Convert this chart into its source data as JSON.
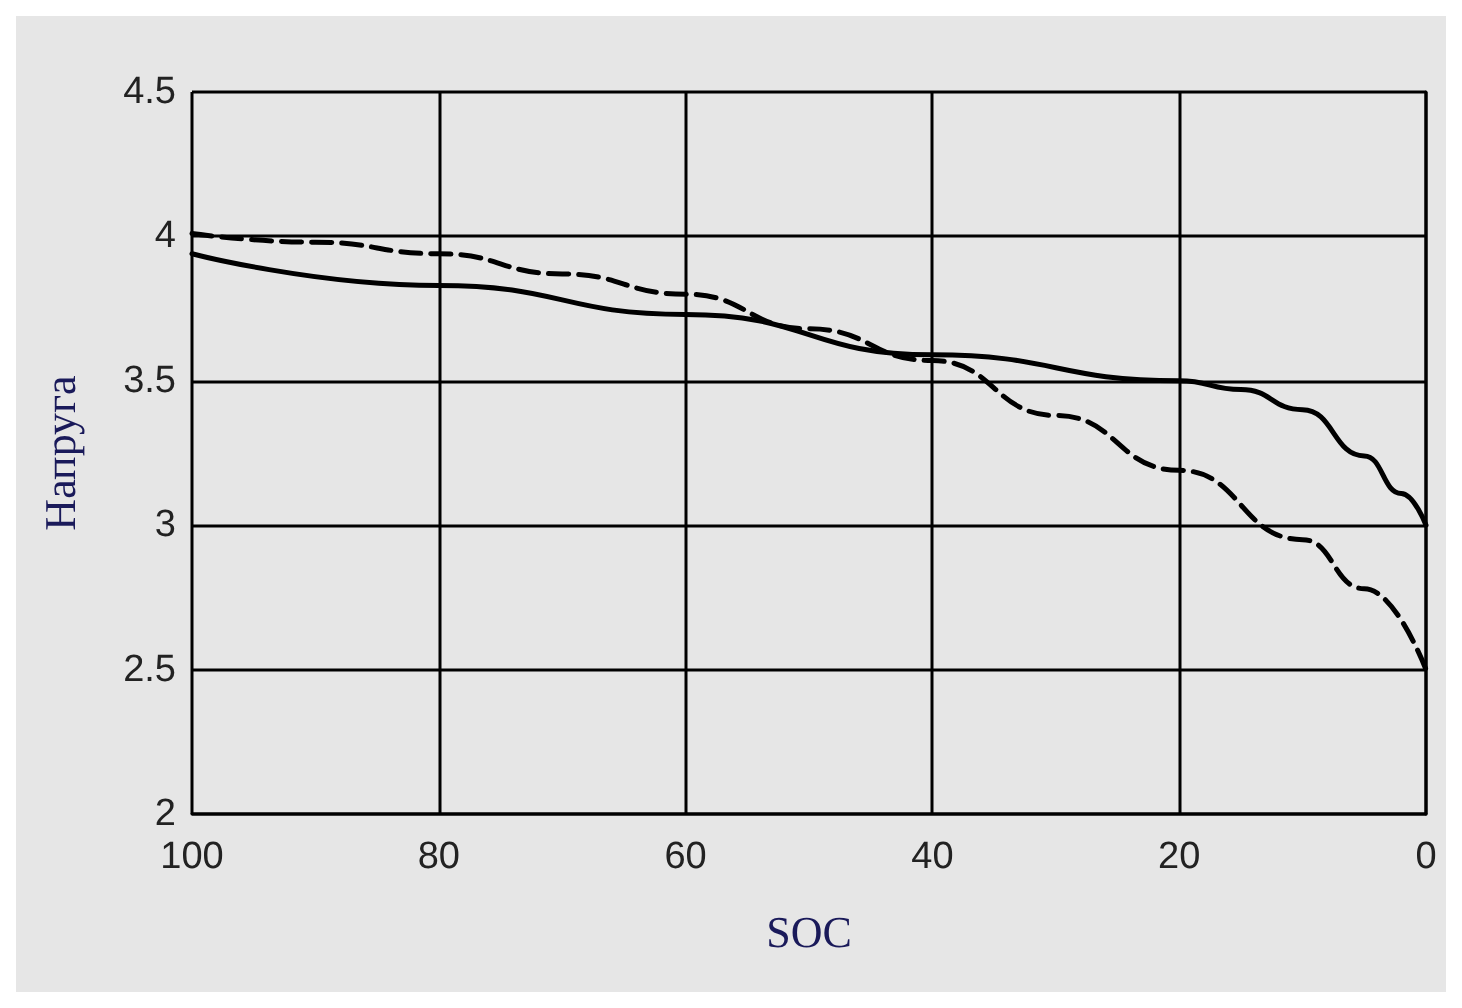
{
  "chart_data": {
    "type": "line",
    "xlabel": "SOC",
    "ylabel": "Напруга",
    "xlim": [
      100,
      0
    ],
    "xticks": [
      100,
      80,
      60,
      40,
      20,
      0
    ],
    "ylim": [
      2,
      4.5
    ],
    "yticks": [
      2,
      2.5,
      3,
      3.5,
      4,
      4.5
    ],
    "grid": true,
    "marker": "none",
    "series": [
      {
        "color": "#000000",
        "line_style": "solid",
        "x": [
          100,
          80,
          60,
          40,
          20,
          15,
          10,
          5,
          2,
          0
        ],
        "values": [
          3.94,
          3.83,
          3.73,
          3.59,
          3.5,
          3.47,
          3.4,
          3.24,
          3.11,
          3.0
        ]
      },
      {
        "color": "#000000",
        "line_style": "dashed",
        "x": [
          100,
          90,
          80,
          70,
          60,
          50,
          40,
          30,
          20,
          10,
          5,
          0
        ],
        "values": [
          4.01,
          3.98,
          3.94,
          3.87,
          3.8,
          3.68,
          3.57,
          3.38,
          3.19,
          2.95,
          2.78,
          2.5
        ]
      }
    ]
  }
}
